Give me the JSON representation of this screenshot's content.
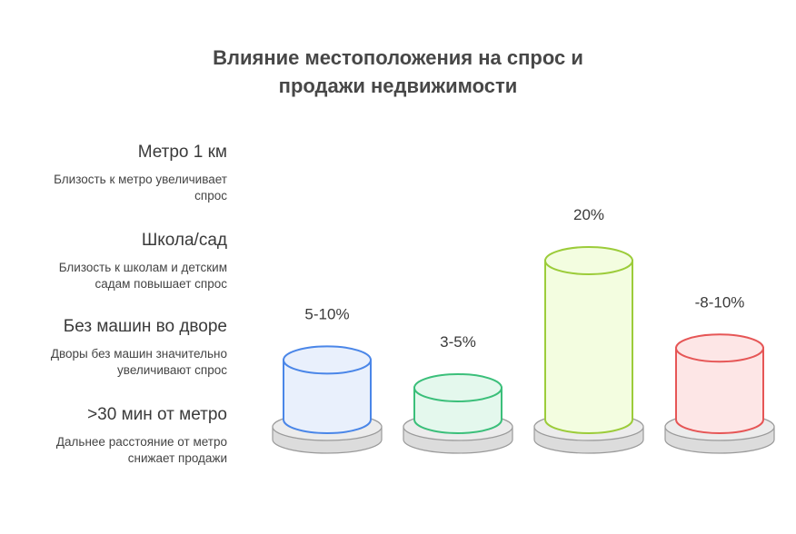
{
  "title_lines": [
    "Влияние местоположения на спрос и",
    "продажи недвижимости"
  ],
  "factors": [
    {
      "label": "Метро 1 км",
      "desc": [
        "Близость к метро увеличивает",
        "спрос"
      ]
    },
    {
      "label": "Школа/сад",
      "desc": [
        "Близость к школам и детским",
        "садам повышает спрос"
      ]
    },
    {
      "label": "Без машин во дворе",
      "desc": [
        "Дворы без машин значительно",
        "увеличивают спрос"
      ]
    },
    {
      "label": ">30 мин от метро",
      "desc": [
        "Дальнее расстояние от метро",
        "снижает продажи"
      ]
    }
  ],
  "chart_data": {
    "type": "bar",
    "categories": [
      "Метро 1 км",
      "Школа/сад",
      "Без машин во дворе",
      ">30 мин от метро"
    ],
    "values": [
      7.5,
      4,
      20,
      9
    ],
    "value_labels": [
      "5-10%",
      "3-5%",
      "20%",
      "-8-10%"
    ],
    "colors": [
      {
        "stroke": "#4a86e8",
        "fill": "#e9f0fc"
      },
      {
        "stroke": "#3bbf7a",
        "fill": "#e4f8ed"
      },
      {
        "stroke": "#9ccc3a",
        "fill": "#f3fde0"
      },
      {
        "stroke": "#e65656",
        "fill": "#fde6e6"
      }
    ],
    "title": "Влияние местоположения на спрос и продажи недвижимости"
  }
}
